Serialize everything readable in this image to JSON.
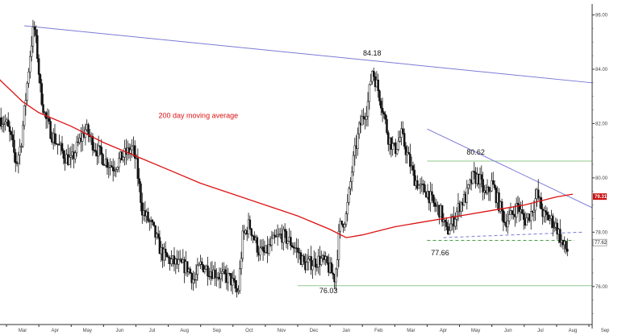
{
  "chart_data": {
    "type": "candlestick",
    "y_ticks": [
      "86.00",
      "84.00",
      "82.00",
      "80.00",
      "78.00",
      "76.00"
    ],
    "ylim": [
      74.6,
      86.4
    ],
    "months": [
      {
        "label": "Mar",
        "pos": 0.0
      },
      {
        "label": "Apr",
        "pos": 1.0
      },
      {
        "label": "May",
        "pos": 2.0
      },
      {
        "label": "Jun",
        "pos": 3.0
      },
      {
        "label": "Jul",
        "pos": 4.0
      },
      {
        "label": "Aug",
        "pos": 5.0
      },
      {
        "label": "Sep",
        "pos": 6.0
      },
      {
        "label": "Oct",
        "pos": 7.0
      },
      {
        "label": "Nov",
        "pos": 8.0
      },
      {
        "label": "Dec",
        "pos": 9.0
      },
      {
        "label": "Jan",
        "pos": 10.0
      },
      {
        "label": "Feb",
        "pos": 11.0
      },
      {
        "label": "Mar",
        "pos": 12.0
      },
      {
        "label": "Apr",
        "pos": 13.0
      },
      {
        "label": "May",
        "pos": 14.0
      },
      {
        "label": "Jun",
        "pos": 15.0
      },
      {
        "label": "Jul",
        "pos": 16.0
      },
      {
        "label": "Aug",
        "pos": 17.0
      },
      {
        "label": "Sep",
        "pos": 18.0
      }
    ],
    "xlim": [
      -0.2,
      18.1
    ],
    "price_path": [
      [
        -0.8,
        83.0
      ],
      [
        -0.4,
        82.4
      ],
      [
        0.0,
        82.0
      ],
      [
        0.15,
        81.4
      ],
      [
        0.3,
        80.5
      ],
      [
        0.45,
        81.3
      ],
      [
        0.6,
        83.0
      ],
      [
        0.75,
        84.8
      ],
      [
        0.85,
        85.6
      ],
      [
        0.95,
        84.6
      ],
      [
        1.05,
        83.2
      ],
      [
        1.2,
        82.2
      ],
      [
        1.4,
        81.6
      ],
      [
        1.6,
        81.2
      ],
      [
        1.8,
        80.8
      ],
      [
        2.0,
        80.6
      ],
      [
        2.2,
        81.2
      ],
      [
        2.45,
        81.8
      ],
      [
        2.7,
        81.2
      ],
      [
        3.0,
        80.7
      ],
      [
        3.3,
        80.4
      ],
      [
        3.6,
        80.8
      ],
      [
        3.9,
        81.1
      ],
      [
        4.0,
        80.6
      ],
      [
        4.2,
        78.8
      ],
      [
        4.5,
        78.2
      ],
      [
        4.8,
        77.2
      ],
      [
        5.0,
        77.0
      ],
      [
        5.3,
        76.8
      ],
      [
        5.6,
        76.7
      ],
      [
        5.8,
        76.2
      ],
      [
        6.0,
        76.8
      ],
      [
        6.3,
        76.6
      ],
      [
        6.6,
        76.4
      ],
      [
        6.9,
        76.3
      ],
      [
        7.0,
        76.1
      ],
      [
        7.15,
        75.7
      ],
      [
        7.3,
        77.8
      ],
      [
        7.5,
        78.3
      ],
      [
        7.8,
        77.3
      ],
      [
        8.0,
        77.2
      ],
      [
        8.2,
        77.6
      ],
      [
        8.5,
        77.9
      ],
      [
        8.8,
        77.6
      ],
      [
        9.0,
        77.3
      ],
      [
        9.2,
        76.8
      ],
      [
        9.5,
        76.9
      ],
      [
        9.7,
        77.0
      ],
      [
        9.9,
        76.8
      ],
      [
        10.0,
        76.6
      ],
      [
        10.15,
        76.3
      ],
      [
        10.3,
        78.2
      ],
      [
        10.5,
        78.6
      ],
      [
        10.7,
        80.5
      ],
      [
        10.9,
        81.8
      ],
      [
        11.0,
        82.2
      ],
      [
        11.15,
        82.6
      ],
      [
        11.3,
        84.0
      ],
      [
        11.45,
        83.4
      ],
      [
        11.6,
        82.7
      ],
      [
        11.8,
        81.5
      ],
      [
        12.0,
        81.0
      ],
      [
        12.2,
        81.6
      ],
      [
        12.4,
        80.8
      ],
      [
        12.6,
        80.0
      ],
      [
        12.8,
        79.6
      ],
      [
        13.0,
        79.5
      ],
      [
        13.2,
        79.0
      ],
      [
        13.4,
        78.8
      ],
      [
        13.6,
        78.0
      ],
      [
        13.8,
        78.4
      ],
      [
        14.0,
        79.0
      ],
      [
        14.2,
        79.3
      ],
      [
        14.4,
        80.0
      ],
      [
        14.6,
        80.0
      ],
      [
        14.8,
        79.3
      ],
      [
        15.0,
        79.8
      ],
      [
        15.2,
        79.1
      ],
      [
        15.4,
        78.4
      ],
      [
        15.6,
        78.6
      ],
      [
        15.8,
        79.0
      ],
      [
        16.0,
        78.4
      ],
      [
        16.2,
        78.7
      ],
      [
        16.4,
        79.4
      ],
      [
        16.6,
        78.6
      ],
      [
        16.8,
        78.5
      ],
      [
        17.0,
        78.2
      ],
      [
        17.2,
        77.5
      ],
      [
        17.35,
        77.3
      ]
    ],
    "moving_average": {
      "label": "200 day moving average",
      "points": [
        [
          -0.8,
          85.0
        ],
        [
          -0.2,
          83.6
        ],
        [
          0.5,
          82.8
        ],
        [
          1.0,
          82.4
        ],
        [
          2.0,
          81.9
        ],
        [
          3.0,
          81.3
        ],
        [
          4.0,
          80.8
        ],
        [
          5.0,
          80.3
        ],
        [
          6.0,
          79.8
        ],
        [
          7.0,
          79.4
        ],
        [
          8.0,
          79.0
        ],
        [
          9.0,
          78.6
        ],
        [
          10.0,
          78.1
        ],
        [
          10.5,
          77.8
        ],
        [
          11.0,
          77.9
        ],
        [
          12.0,
          78.2
        ],
        [
          13.0,
          78.4
        ],
        [
          14.0,
          78.6
        ],
        [
          15.0,
          78.8
        ],
        [
          16.0,
          79.0
        ],
        [
          17.0,
          79.3
        ],
        [
          17.5,
          79.4
        ]
      ]
    },
    "annotations": [
      {
        "text": "84.18",
        "x": 11.3,
        "y": 84.5
      },
      {
        "text": "80.62",
        "x": 14.5,
        "y": 80.85
      },
      {
        "text": "77.66",
        "x": 13.4,
        "y": 77.15
      },
      {
        "text": "76.03",
        "x": 9.95,
        "y": 75.75
      }
    ],
    "ma_label_pos": {
      "x": 4.7,
      "y": 82.2
    },
    "trendlines": [
      {
        "name": "long-term-resistance",
        "color": "#7a7ad6",
        "x1": 0.55,
        "y1": 85.6,
        "x2": 18.1,
        "y2": 83.5
      },
      {
        "name": "short-term-resistance",
        "color": "#7a7ad6",
        "x1": 13.0,
        "y1": 81.8,
        "x2": 18.1,
        "y2": 78.9
      },
      {
        "name": "support-trendline",
        "color": "#7a7ad6",
        "dashed": true,
        "x1": 13.5,
        "y1": 77.8,
        "x2": 17.8,
        "y2": 78.0
      }
    ],
    "horizontal_levels": [
      {
        "name": "level-80.62",
        "y": 80.62,
        "x1": 13.0,
        "x2": 18.1,
        "color": "#8fc98f",
        "dashed": false
      },
      {
        "name": "level-77.66",
        "y": 77.7,
        "x1": 13.0,
        "x2": 17.55,
        "color": "#4a9b4a",
        "dashed": true
      },
      {
        "name": "level-76.03",
        "y": 76.03,
        "x1": 9.0,
        "x2": 18.1,
        "color": "#8fc98f",
        "dashed": false
      }
    ],
    "last_price_badge": {
      "value": "79.31",
      "y": 79.31
    },
    "current_price_label": {
      "value": "77.62",
      "y": 77.62
    }
  }
}
